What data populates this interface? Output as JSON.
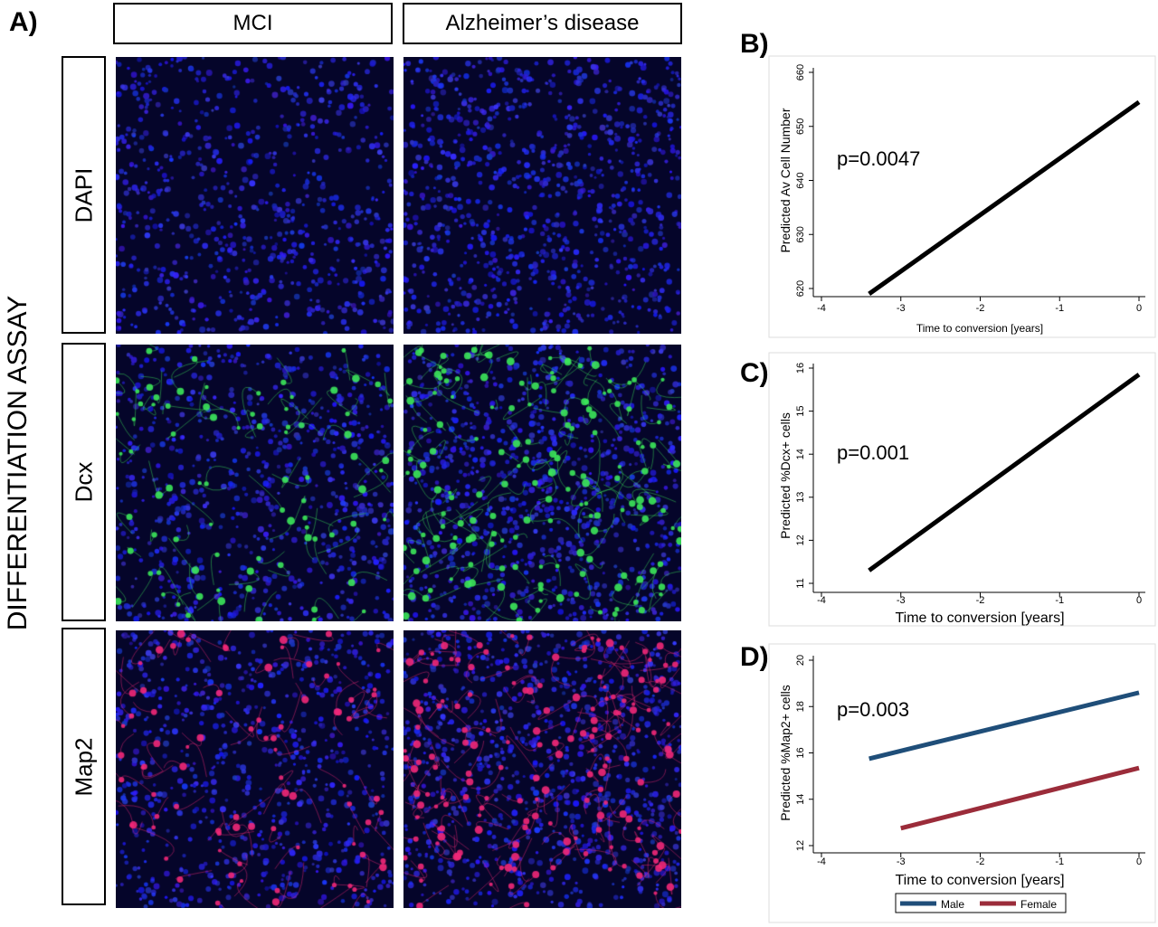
{
  "panel_a": {
    "letter": "A)",
    "assay_title": "DIFFERENTIATION ASSAY",
    "columns": [
      "MCI",
      "Alzheimer’s disease"
    ],
    "rows": [
      {
        "label": "DAPI",
        "stain": "blue nuclei"
      },
      {
        "label": "Dcx",
        "stain": "green neurites on blue nuclei"
      },
      {
        "label": "Map2",
        "stain": "red neurites on blue nuclei"
      }
    ]
  },
  "chart_data": [
    {
      "letter": "B)",
      "type": "line",
      "annotation": "p=0.0047",
      "xlabel": "Time to conversion [years]",
      "ylabel": "Predicted Av Cell Number",
      "xlim": [
        -4,
        0
      ],
      "ylim": [
        620,
        660
      ],
      "xticks": [
        -4,
        -3,
        -2,
        -1,
        0
      ],
      "yticks": [
        620,
        630,
        640,
        650,
        660
      ],
      "grid": false,
      "series": [
        {
          "color": "#000000",
          "x": [
            -3.4,
            0
          ],
          "y": [
            619,
            654.5
          ]
        }
      ]
    },
    {
      "letter": "C)",
      "type": "line",
      "annotation": "p=0.001",
      "xlabel": "Time to conversion [years]",
      "ylabel": "Predicted %Dcx+ cells",
      "xlim": [
        -4,
        0
      ],
      "ylim": [
        11,
        16
      ],
      "xticks": [
        -4,
        -3,
        -2,
        -1,
        0
      ],
      "yticks": [
        11,
        12,
        13,
        14,
        15,
        16
      ],
      "grid": false,
      "series": [
        {
          "color": "#000000",
          "x": [
            -3.4,
            0
          ],
          "y": [
            11.3,
            15.85
          ]
        }
      ]
    },
    {
      "letter": "D)",
      "type": "line",
      "annotation": "p=0.003",
      "xlabel": "Time to conversion [years]",
      "ylabel": "Predicted %Map2+ cells",
      "xlim": [
        -4,
        0
      ],
      "ylim": [
        12,
        20
      ],
      "xticks": [
        -4,
        -3,
        -2,
        -1,
        0
      ],
      "yticks": [
        12,
        14,
        16,
        18,
        20
      ],
      "grid": false,
      "legend": "bottom",
      "series": [
        {
          "name": "Male",
          "color": "#1f4e79",
          "x": [
            -3.4,
            0
          ],
          "y": [
            15.75,
            18.6
          ]
        },
        {
          "name": "Female",
          "color": "#9b2c3a",
          "x": [
            -3,
            0
          ],
          "y": [
            12.75,
            15.35
          ]
        }
      ]
    }
  ]
}
